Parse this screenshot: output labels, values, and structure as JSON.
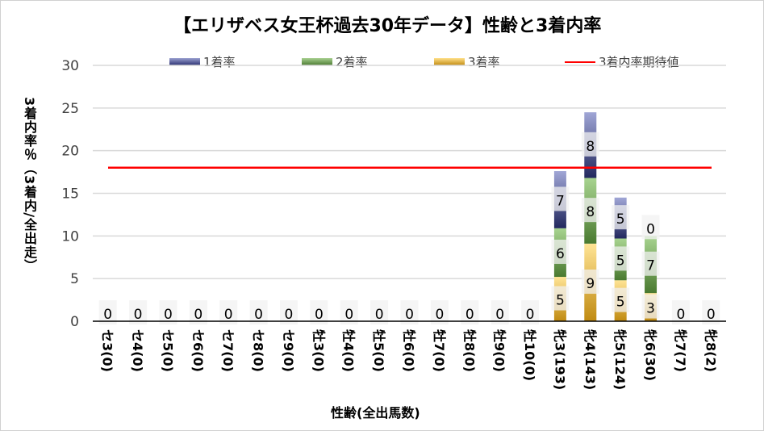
{
  "chart_data": {
    "type": "bar",
    "stacked": true,
    "title": "【エリザベス女王杯過去30年データ】性齢と3着内率",
    "xlabel": "性齢(全出馬数)",
    "ylabel": "3着内率％（3着内/全出走）",
    "ylim": [
      0,
      30
    ],
    "yticks": [
      0,
      5,
      10,
      15,
      20,
      25,
      30
    ],
    "grid": true,
    "legend_position": "top",
    "categories": [
      "セ3(0)",
      "セ4(0)",
      "セ5(0)",
      "セ6(0)",
      "セ7(0)",
      "セ8(0)",
      "セ9(0)",
      "牡3(0)",
      "牡4(0)",
      "牡5(0)",
      "牡6(0)",
      "牡7(0)",
      "牡8(0)",
      "牡9(0)",
      "牡10(0)",
      "牝3(193)",
      "牝4(143)",
      "牝5(124)",
      "牝6(30)",
      "牝7(7)",
      "牝8(2)"
    ],
    "series": [
      {
        "name": "3着率",
        "color": "#d4a537",
        "values": [
          0,
          0,
          0,
          0,
          0,
          0,
          0,
          0,
          0,
          0,
          0,
          0,
          0,
          0,
          0,
          5.2,
          9.1,
          4.8,
          3.3,
          0,
          0
        ]
      },
      {
        "name": "2着率",
        "color": "#70a050",
        "values": [
          0,
          0,
          0,
          0,
          0,
          0,
          0,
          0,
          0,
          0,
          0,
          0,
          0,
          0,
          0,
          5.7,
          7.7,
          4.9,
          6.7,
          0,
          0
        ]
      },
      {
        "name": "1着率",
        "color": "#5a62a8",
        "values": [
          0,
          0,
          0,
          0,
          0,
          0,
          0,
          0,
          0,
          0,
          0,
          0,
          0,
          0,
          0,
          6.7,
          7.7,
          4.8,
          0,
          0,
          0
        ]
      }
    ],
    "reference_line": {
      "name": "3着内率期待値",
      "value": 18,
      "color": "#ff0000"
    },
    "legend": [
      "1着率",
      "2着率",
      "3着率",
      "3着内率期待値"
    ]
  }
}
